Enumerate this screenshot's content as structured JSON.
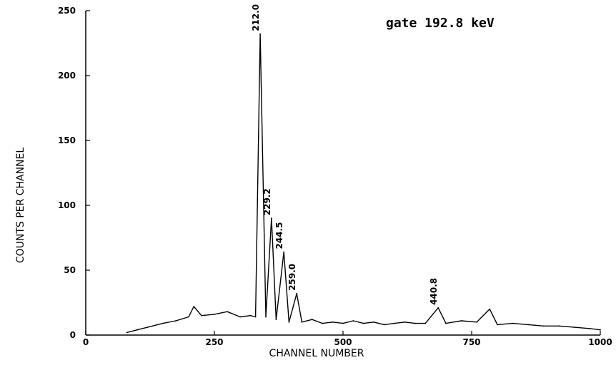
{
  "chart_data": {
    "type": "line",
    "title": "gate 192.8 keV",
    "xlabel": "CHANNEL NUMBER",
    "ylabel": "COUNTS PER CHANNEL",
    "xlim": [
      0,
      1000
    ],
    "ylim": [
      0,
      250
    ],
    "x_ticks": [
      0,
      250,
      500,
      750,
      1000
    ],
    "y_ticks": [
      0,
      50,
      100,
      150,
      200,
      250
    ],
    "x_tick_labels": [
      "0",
      "250",
      "500",
      "750",
      "1000"
    ],
    "y_tick_labels": [
      "0",
      "50",
      "100",
      "150",
      "200",
      "250"
    ],
    "grid": false,
    "legend": "none",
    "series": [
      {
        "x": [
          80,
          100,
          120,
          150,
          175,
          200,
          210,
          225,
          250,
          275,
          300,
          320,
          330,
          339,
          350,
          361,
          370,
          385,
          395,
          410,
          420,
          440,
          460,
          480,
          500,
          520,
          540,
          560,
          580,
          600,
          620,
          640,
          660,
          685,
          700,
          730,
          760,
          785,
          800,
          830,
          860,
          890,
          920,
          950,
          980,
          1000
        ],
        "values": [
          2,
          4,
          6,
          9,
          11,
          14,
          22,
          15,
          16,
          18,
          14,
          15,
          14,
          232,
          14,
          90,
          12,
          64,
          10,
          32,
          10,
          12,
          9,
          10,
          9,
          11,
          9,
          10,
          8,
          9,
          10,
          9,
          9,
          21,
          9,
          11,
          10,
          20,
          8,
          9,
          8,
          7,
          7,
          6,
          5,
          4
        ]
      }
    ],
    "peak_labels": [
      {
        "text": "212.0",
        "x": 339,
        "y": 232
      },
      {
        "text": "229.2",
        "x": 361,
        "y": 90
      },
      {
        "text": "244.5",
        "x": 385,
        "y": 64
      },
      {
        "text": "259.0",
        "x": 410,
        "y": 32
      },
      {
        "text": "440.8",
        "x": 685,
        "y": 21
      }
    ]
  }
}
